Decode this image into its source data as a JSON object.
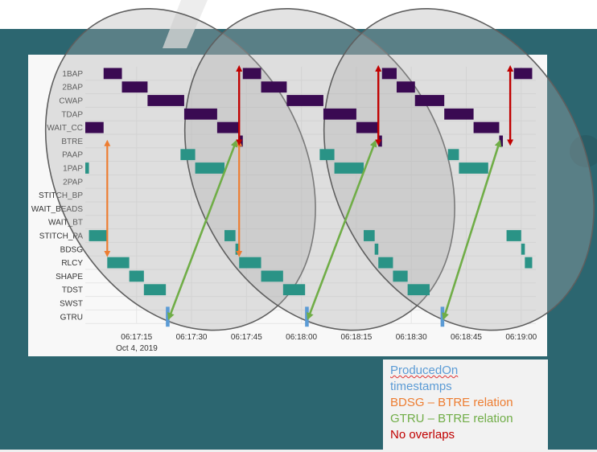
{
  "chart_data": {
    "type": "gantt",
    "rows": [
      "1BAP",
      "2BAP",
      "CWAP",
      "TDAP",
      "WAIT_CC",
      "BTRE",
      "PAAP",
      "1PAP",
      "2PAP",
      "STITCH_BP",
      "WAIT_BEADS",
      "WAIT_BT",
      "STITCH_PA",
      "BDSG",
      "RLCY",
      "SHAPE",
      "TDST",
      "SWST",
      "GTRU"
    ],
    "x_range": [
      "06:17:01",
      "06:19:04"
    ],
    "x_ticks": [
      "06:17:15",
      "06:17:30",
      "06:17:45",
      "06:18:00",
      "06:18:15",
      "06:18:30",
      "06:18:45",
      "06:19:00"
    ],
    "x_date_label": "Oct 4, 2019",
    "colors": {
      "purple": "#3a0a52",
      "teal": "#2a9386",
      "blue": "#5b9bd5",
      "orange": "#ed7d31",
      "green": "#70ad47",
      "red": "#c00000"
    },
    "segments": [
      {
        "row": "WAIT_CC",
        "start": "06:17:01",
        "end": "06:17:06",
        "color": "purple"
      },
      {
        "row": "1BAP",
        "start": "06:17:06",
        "end": "06:17:11",
        "color": "purple"
      },
      {
        "row": "2BAP",
        "start": "06:17:11",
        "end": "06:17:18",
        "color": "purple"
      },
      {
        "row": "CWAP",
        "start": "06:17:18",
        "end": "06:17:28",
        "color": "purple"
      },
      {
        "row": "TDAP",
        "start": "06:17:28",
        "end": "06:17:37",
        "color": "purple"
      },
      {
        "row": "WAIT_CC",
        "start": "06:17:37",
        "end": "06:17:43",
        "color": "purple"
      },
      {
        "row": "BTRE",
        "start": "06:17:43",
        "end": "06:17:44",
        "color": "purple"
      },
      {
        "row": "1BAP",
        "start": "06:17:44",
        "end": "06:17:49",
        "color": "purple"
      },
      {
        "row": "2BAP",
        "start": "06:17:49",
        "end": "06:17:56",
        "color": "purple"
      },
      {
        "row": "CWAP",
        "start": "06:17:56",
        "end": "06:18:06",
        "color": "purple"
      },
      {
        "row": "TDAP",
        "start": "06:18:06",
        "end": "06:18:15",
        "color": "purple"
      },
      {
        "row": "WAIT_CC",
        "start": "06:18:15",
        "end": "06:18:21",
        "color": "purple"
      },
      {
        "row": "BTRE",
        "start": "06:18:21",
        "end": "06:18:22",
        "color": "purple"
      },
      {
        "row": "1BAP",
        "start": "06:18:22",
        "end": "06:18:26",
        "color": "purple"
      },
      {
        "row": "2BAP",
        "start": "06:18:26",
        "end": "06:18:31",
        "color": "purple"
      },
      {
        "row": "CWAP",
        "start": "06:18:31",
        "end": "06:18:39",
        "color": "purple"
      },
      {
        "row": "TDAP",
        "start": "06:18:39",
        "end": "06:18:47",
        "color": "purple"
      },
      {
        "row": "WAIT_CC",
        "start": "06:18:47",
        "end": "06:18:54",
        "color": "purple"
      },
      {
        "row": "BTRE",
        "start": "06:18:54",
        "end": "06:18:55",
        "color": "purple"
      },
      {
        "row": "1BAP",
        "start": "06:18:58",
        "end": "06:19:03",
        "color": "purple"
      },
      {
        "row": "1PAP",
        "start": "06:17:01",
        "end": "06:17:02",
        "color": "teal"
      },
      {
        "row": "STITCH_PA",
        "start": "06:17:02",
        "end": "06:17:07",
        "color": "teal"
      },
      {
        "row": "RLCY",
        "start": "06:17:07",
        "end": "06:17:13",
        "color": "teal"
      },
      {
        "row": "SHAPE",
        "start": "06:17:13",
        "end": "06:17:17",
        "color": "teal"
      },
      {
        "row": "TDST",
        "start": "06:17:17",
        "end": "06:17:23",
        "color": "teal"
      },
      {
        "row": "PAAP",
        "start": "06:17:27",
        "end": "06:17:31",
        "color": "teal"
      },
      {
        "row": "1PAP",
        "start": "06:17:31",
        "end": "06:17:39",
        "color": "teal"
      },
      {
        "row": "STITCH_PA",
        "start": "06:17:39",
        "end": "06:17:42",
        "color": "teal"
      },
      {
        "row": "BDSG",
        "start": "06:17:42",
        "end": "06:17:43",
        "color": "teal"
      },
      {
        "row": "RLCY",
        "start": "06:17:43",
        "end": "06:17:49",
        "color": "teal"
      },
      {
        "row": "SHAPE",
        "start": "06:17:49",
        "end": "06:17:55",
        "color": "teal"
      },
      {
        "row": "TDST",
        "start": "06:17:55",
        "end": "06:18:01",
        "color": "teal"
      },
      {
        "row": "PAAP",
        "start": "06:18:05",
        "end": "06:18:09",
        "color": "teal"
      },
      {
        "row": "1PAP",
        "start": "06:18:09",
        "end": "06:18:17",
        "color": "teal"
      },
      {
        "row": "STITCH_PA",
        "start": "06:18:17",
        "end": "06:18:20",
        "color": "teal"
      },
      {
        "row": "BDSG",
        "start": "06:18:20",
        "end": "06:18:21",
        "color": "teal"
      },
      {
        "row": "RLCY",
        "start": "06:18:21",
        "end": "06:18:25",
        "color": "teal"
      },
      {
        "row": "SHAPE",
        "start": "06:18:25",
        "end": "06:18:29",
        "color": "teal"
      },
      {
        "row": "TDST",
        "start": "06:18:29",
        "end": "06:18:35",
        "color": "teal"
      },
      {
        "row": "PAAP",
        "start": "06:18:40",
        "end": "06:18:43",
        "color": "teal"
      },
      {
        "row": "1PAP",
        "start": "06:18:43",
        "end": "06:18:51",
        "color": "teal"
      },
      {
        "row": "STITCH_PA",
        "start": "06:18:56",
        "end": "06:19:00",
        "color": "teal"
      },
      {
        "row": "BDSG",
        "start": "06:19:00",
        "end": "06:19:01",
        "color": "teal"
      },
      {
        "row": "RLCY",
        "start": "06:19:01",
        "end": "06:19:03",
        "color": "teal"
      },
      {
        "row": "GTRU",
        "start": "06:17:23",
        "end": "06:17:24",
        "color": "blue"
      },
      {
        "row": "GTRU",
        "start": "06:18:01",
        "end": "06:18:02",
        "color": "blue"
      },
      {
        "row": "GTRU",
        "start": "06:18:38",
        "end": "06:18:39",
        "color": "blue"
      }
    ],
    "annotations": {
      "ellipses": [
        {
          "cx": "06:17:27",
          "cy_row": 7.6,
          "rx_s": 34,
          "ry_rows": 12.5,
          "angle": -27
        },
        {
          "cx": "06:18:05",
          "cy_row": 7.6,
          "rx_s": 34,
          "ry_rows": 12.5,
          "angle": -27
        },
        {
          "cx": "06:18:43",
          "cy_row": 7.6,
          "rx_s": 34,
          "ry_rows": 12.5,
          "angle": -27
        }
      ],
      "orange_arrows": [
        {
          "t": "06:17:07",
          "from_row": "PAAP",
          "to_row": "BDSG"
        },
        {
          "t": "06:17:43",
          "from_row": "PAAP",
          "to_row": "BDSG"
        }
      ],
      "green_arrows": [
        {
          "from_t": "06:17:24",
          "from_row": "GTRU",
          "to_t": "06:17:42",
          "to_row": "PAAP"
        },
        {
          "from_t": "06:18:02",
          "from_row": "GTRU",
          "to_t": "06:18:20",
          "to_row": "PAAP"
        },
        {
          "from_t": "06:18:39",
          "from_row": "GTRU",
          "to_t": "06:18:54",
          "to_row": "PAAP"
        }
      ],
      "red_arrows": [
        {
          "t": "06:17:43",
          "from_row": "1BAP",
          "to_row": "BTRE"
        },
        {
          "t": "06:18:21",
          "from_row": "1BAP",
          "to_row": "BTRE"
        },
        {
          "t": "06:18:57",
          "from_row": "1BAP",
          "to_row": "BTRE"
        }
      ]
    }
  },
  "legend": {
    "producedon_word": "ProducedOn",
    "producedon_rest": "timestamps",
    "bdsg": "BDSG – BTRE relation",
    "gtru": "GTRU – BTRE relation",
    "overlaps": "No overlaps"
  }
}
